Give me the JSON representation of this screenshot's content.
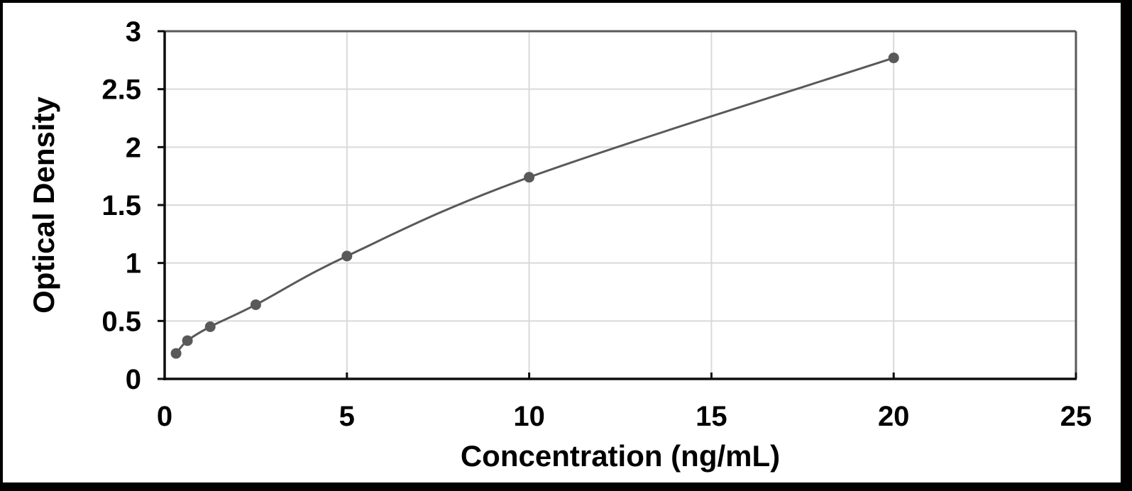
{
  "figure": {
    "background_color": "#ffffff",
    "frame_color": "#000000"
  },
  "chart_data": {
    "type": "scatter",
    "mode": "smooth-line-with-markers",
    "title": "",
    "xlabel": "Concentration (ng/mL)",
    "ylabel": "Optical Density",
    "x": [
      0.313,
      0.625,
      1.25,
      2.5,
      5,
      10,
      20
    ],
    "y": [
      0.22,
      0.33,
      0.45,
      0.64,
      1.06,
      1.74,
      2.77
    ],
    "xlim": [
      0,
      25
    ],
    "ylim": [
      0,
      3
    ],
    "xticks": [
      0,
      5,
      10,
      15,
      20,
      25
    ],
    "yticks": [
      0,
      0.5,
      1,
      1.5,
      2,
      2.5,
      3
    ],
    "grid": true,
    "legend": false,
    "colors": {
      "series": "#595959",
      "marker": "#595959",
      "gridline": "#d9d9d9",
      "axis_line": "#0d0d0d",
      "plot_border": "#595959",
      "tick_text": "#000000"
    }
  }
}
